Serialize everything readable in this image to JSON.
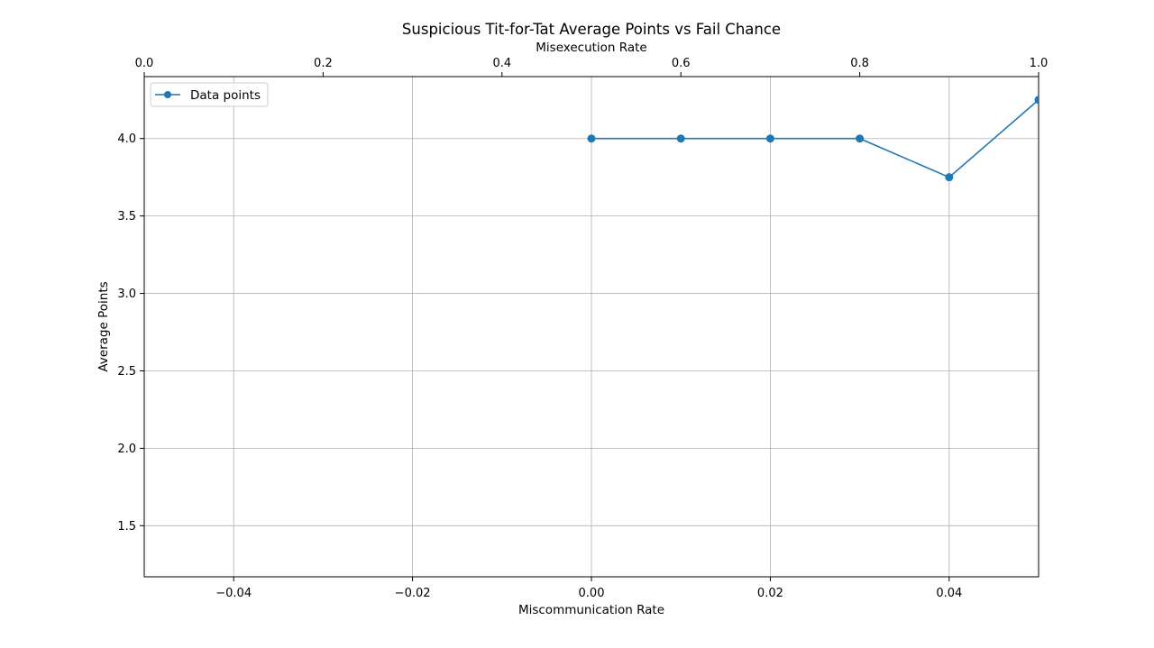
{
  "chart_data": {
    "type": "line",
    "title": "Suspicious Tit-for-Tat Average Points vs Fail Chance",
    "xlabel": "Miscommunication Rate",
    "ylabel": "Average Points",
    "top_xlabel": "Misexecution Rate",
    "xlim": [
      -0.05,
      0.05
    ],
    "ylim": [
      1.17,
      4.4
    ],
    "top_xlim": [
      0.0,
      1.0
    ],
    "x_ticks": [
      -0.04,
      -0.02,
      0.0,
      0.02,
      0.04
    ],
    "x_tick_labels": [
      "−0.04",
      "−0.02",
      "0.00",
      "0.02",
      "0.04"
    ],
    "y_ticks": [
      1.5,
      2.0,
      2.5,
      3.0,
      3.5,
      4.0
    ],
    "y_tick_labels": [
      "1.5",
      "2.0",
      "2.5",
      "3.0",
      "3.5",
      "4.0"
    ],
    "top_x_ticks": [
      0.0,
      0.2,
      0.4,
      0.6,
      0.8,
      1.0
    ],
    "top_x_tick_labels": [
      "0.0",
      "0.2",
      "0.4",
      "0.6",
      "0.8",
      "1.0"
    ],
    "grid": true,
    "legend_position": "top-left",
    "series": [
      {
        "name": "Data points",
        "color": "#1f77b4",
        "x": [
          0.0,
          0.01,
          0.02,
          0.03,
          0.04,
          0.05
        ],
        "values": [
          4.0,
          4.0,
          4.0,
          4.0,
          3.75,
          4.25
        ]
      }
    ]
  }
}
